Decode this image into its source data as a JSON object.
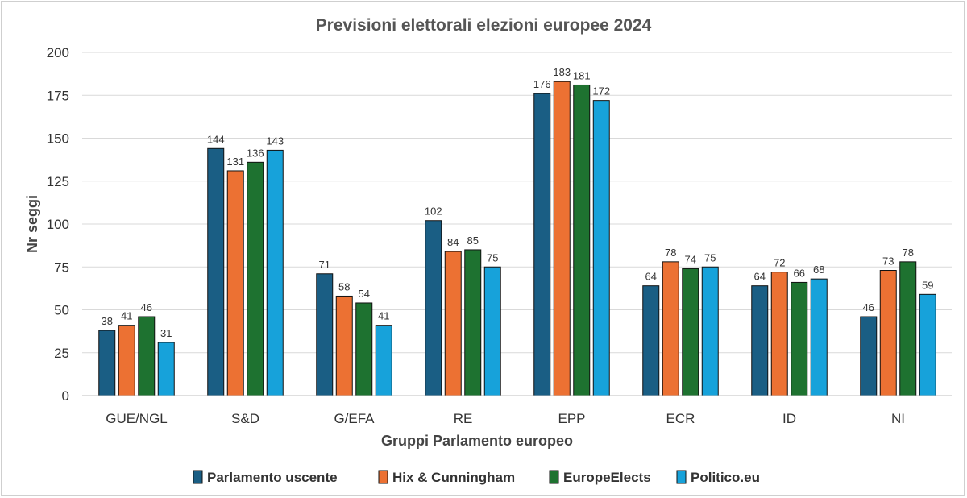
{
  "chart_data": {
    "type": "bar",
    "title": "Previsioni elettorali elezioni europee 2024",
    "xlabel": "Gruppi Parlamento europeo",
    "ylabel": "Nr seggi",
    "ylim": [
      0,
      200
    ],
    "yticks": [
      0,
      25,
      50,
      75,
      100,
      125,
      150,
      175,
      200
    ],
    "categories": [
      "GUE/NGL",
      "S&D",
      "G/EFA",
      "RE",
      "EPP",
      "ECR",
      "ID",
      "NI"
    ],
    "series": [
      {
        "name": "Parlamento uscente",
        "color": "#1a5e84",
        "values": [
          38,
          144,
          71,
          102,
          176,
          64,
          64,
          46
        ]
      },
      {
        "name": "Hix & Cunningham",
        "color": "#ec7133",
        "values": [
          41,
          131,
          58,
          84,
          183,
          78,
          72,
          73
        ]
      },
      {
        "name": "EuropeElects",
        "color": "#1e7230",
        "values": [
          46,
          136,
          54,
          85,
          181,
          74,
          66,
          78
        ]
      },
      {
        "name": "Politico.eu",
        "color": "#17a2da",
        "values": [
          31,
          143,
          41,
          75,
          172,
          75,
          68,
          59
        ]
      }
    ],
    "grid": true,
    "legend": "bottom",
    "data_labels": true
  }
}
